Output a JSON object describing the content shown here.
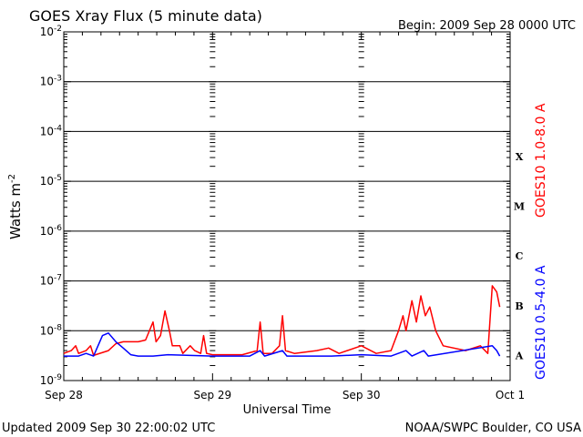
{
  "chart_data": {
    "type": "line",
    "title": "GOES Xray Flux (5 minute data)",
    "begin_label": "Begin:  2009 Sep 28 0000 UTC",
    "xlabel": "Universal Time",
    "ylabel": "Watts m",
    "ylabel_sup": "-2",
    "x_tick_labels": [
      "Sep 28",
      "Sep 29",
      "Sep 30",
      "Oct 1"
    ],
    "x_range_days": [
      0,
      3
    ],
    "y_scale": "log",
    "ylim": [
      1e-09,
      0.01
    ],
    "y_tick_exponents": [
      "-2",
      "-3",
      "-4",
      "-5",
      "-6",
      "-7",
      "-8",
      "-9"
    ],
    "y_tick_base": "10",
    "flare_classes": [
      "X",
      "M",
      "C",
      "B",
      "A"
    ],
    "series": [
      {
        "name": "GOES10 1.0-8.0 A",
        "color": "#ff0000",
        "points": [
          [
            0.0,
            3.5e-09
          ],
          [
            0.05,
            4e-09
          ],
          [
            0.08,
            5e-09
          ],
          [
            0.1,
            3.5e-09
          ],
          [
            0.15,
            4e-09
          ],
          [
            0.18,
            5e-09
          ],
          [
            0.2,
            3.2e-09
          ],
          [
            0.3,
            4e-09
          ],
          [
            0.35,
            5.5e-09
          ],
          [
            0.4,
            6e-09
          ],
          [
            0.45,
            6e-09
          ],
          [
            0.5,
            6e-09
          ],
          [
            0.55,
            6.5e-09
          ],
          [
            0.6,
            1.5e-08
          ],
          [
            0.62,
            6e-09
          ],
          [
            0.65,
            8e-09
          ],
          [
            0.68,
            2.5e-08
          ],
          [
            0.71,
            1e-08
          ],
          [
            0.73,
            5e-09
          ],
          [
            0.78,
            5e-09
          ],
          [
            0.8,
            3.5e-09
          ],
          [
            0.85,
            5e-09
          ],
          [
            0.88,
            4e-09
          ],
          [
            0.92,
            3.5e-09
          ],
          [
            0.94,
            8e-09
          ],
          [
            0.96,
            3.5e-09
          ],
          [
            1.0,
            3.3e-09
          ],
          [
            1.2,
            3.3e-09
          ],
          [
            1.3,
            4e-09
          ],
          [
            1.32,
            1.5e-08
          ],
          [
            1.34,
            3.5e-09
          ],
          [
            1.4,
            3.5e-09
          ],
          [
            1.45,
            5e-09
          ],
          [
            1.47,
            2e-08
          ],
          [
            1.49,
            4e-09
          ],
          [
            1.55,
            3.5e-09
          ],
          [
            1.7,
            4e-09
          ],
          [
            1.78,
            4.5e-09
          ],
          [
            1.85,
            3.5e-09
          ],
          [
            2.0,
            5e-09
          ],
          [
            2.1,
            3.5e-09
          ],
          [
            2.2,
            4e-09
          ],
          [
            2.25,
            1e-08
          ],
          [
            2.28,
            2e-08
          ],
          [
            2.3,
            1e-08
          ],
          [
            2.34,
            4e-08
          ],
          [
            2.37,
            1.5e-08
          ],
          [
            2.4,
            5e-08
          ],
          [
            2.43,
            2e-08
          ],
          [
            2.46,
            3e-08
          ],
          [
            2.5,
            1e-08
          ],
          [
            2.55,
            5e-09
          ],
          [
            2.7,
            4e-09
          ],
          [
            2.8,
            5e-09
          ],
          [
            2.85,
            3.5e-09
          ],
          [
            2.88,
            8e-08
          ],
          [
            2.91,
            6e-08
          ],
          [
            2.93,
            3e-08
          ]
        ]
      },
      {
        "name": "GOES10 0.5-4.0 A",
        "color": "#0000ff",
        "points": [
          [
            0.0,
            3.1e-09
          ],
          [
            0.1,
            3.1e-09
          ],
          [
            0.15,
            3.5e-09
          ],
          [
            0.2,
            3.1e-09
          ],
          [
            0.23,
            5e-09
          ],
          [
            0.26,
            8e-09
          ],
          [
            0.3,
            9e-09
          ],
          [
            0.35,
            6e-09
          ],
          [
            0.4,
            4.5e-09
          ],
          [
            0.45,
            3.3e-09
          ],
          [
            0.5,
            3.1e-09
          ],
          [
            0.6,
            3.1e-09
          ],
          [
            0.7,
            3.3e-09
          ],
          [
            1.0,
            3.1e-09
          ],
          [
            1.25,
            3.1e-09
          ],
          [
            1.32,
            4e-09
          ],
          [
            1.35,
            3.1e-09
          ],
          [
            1.47,
            4e-09
          ],
          [
            1.5,
            3.1e-09
          ],
          [
            1.8,
            3.1e-09
          ],
          [
            2.0,
            3.3e-09
          ],
          [
            2.2,
            3.1e-09
          ],
          [
            2.3,
            4e-09
          ],
          [
            2.34,
            3.1e-09
          ],
          [
            2.42,
            4e-09
          ],
          [
            2.45,
            3.1e-09
          ],
          [
            2.88,
            5e-09
          ],
          [
            2.91,
            4e-09
          ],
          [
            2.93,
            3.1e-09
          ]
        ]
      }
    ]
  },
  "footer": {
    "updated": "Updated 2009 Sep 30 22:00:02 UTC",
    "source": "NOAA/SWPC Boulder, CO USA"
  }
}
